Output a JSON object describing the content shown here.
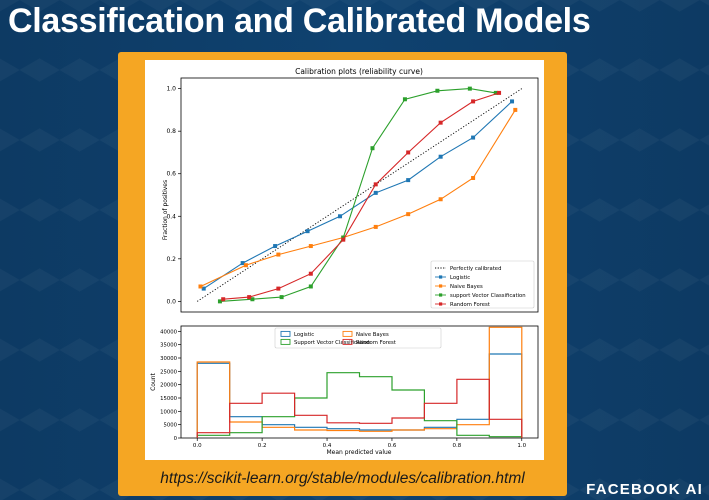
{
  "slide": {
    "title": "Classification and Calibrated Models",
    "url": "https://scikit-learn.org/stable/modules/calibration.html",
    "brand": "FACEBOOK AI"
  },
  "colors": {
    "background": "#0d3a63",
    "card": "#f5a623",
    "logistic": "#1f77b4",
    "naive_bayes": "#ff7f0e",
    "svc": "#2ca02c",
    "random_forest": "#d62728"
  },
  "chart_data": [
    {
      "type": "line",
      "title": "Calibration plots  (reliability curve)",
      "xlabel": "",
      "ylabel": "Fraction of positives",
      "xlim": [
        -0.05,
        1.05
      ],
      "ylim": [
        -0.05,
        1.05
      ],
      "yticks": [
        0.0,
        0.2,
        0.4,
        0.6,
        0.8,
        1.0
      ],
      "grid": false,
      "legend": "lower-right",
      "series": [
        {
          "name": "Perfectly calibrated",
          "color": "#000000",
          "style": "dotted",
          "x": [
            0,
            1
          ],
          "y": [
            0,
            1
          ]
        },
        {
          "name": "Logistic",
          "color": "#1f77b4",
          "style": "solid",
          "x": [
            0.02,
            0.14,
            0.24,
            0.34,
            0.44,
            0.55,
            0.65,
            0.75,
            0.85,
            0.97
          ],
          "y": [
            0.06,
            0.18,
            0.26,
            0.33,
            0.4,
            0.51,
            0.57,
            0.68,
            0.77,
            0.94
          ]
        },
        {
          "name": "Naive Bayes",
          "color": "#ff7f0e",
          "style": "solid",
          "x": [
            0.01,
            0.15,
            0.25,
            0.35,
            0.45,
            0.55,
            0.65,
            0.75,
            0.85,
            0.98
          ],
          "y": [
            0.07,
            0.17,
            0.22,
            0.26,
            0.3,
            0.35,
            0.41,
            0.48,
            0.58,
            0.9
          ]
        },
        {
          "name": "support Vector Classification",
          "color": "#2ca02c",
          "style": "solid",
          "x": [
            0.07,
            0.17,
            0.26,
            0.35,
            0.45,
            0.54,
            0.64,
            0.74,
            0.84,
            0.92
          ],
          "y": [
            0.0,
            0.01,
            0.02,
            0.07,
            0.3,
            0.72,
            0.95,
            0.99,
            1.0,
            0.98
          ]
        },
        {
          "name": "Random Forest",
          "color": "#d62728",
          "style": "solid",
          "x": [
            0.08,
            0.16,
            0.25,
            0.35,
            0.45,
            0.55,
            0.65,
            0.75,
            0.85,
            0.93
          ],
          "y": [
            0.01,
            0.02,
            0.06,
            0.13,
            0.29,
            0.55,
            0.7,
            0.84,
            0.94,
            0.98
          ]
        }
      ]
    },
    {
      "type": "histogram",
      "title": "",
      "xlabel": "Mean predicted value",
      "ylabel": "Count",
      "xlim": [
        -0.05,
        1.05
      ],
      "ylim": [
        0,
        42000
      ],
      "xticks": [
        0.0,
        0.2,
        0.4,
        0.6,
        0.8,
        1.0
      ],
      "yticks": [
        0,
        5000,
        10000,
        15000,
        20000,
        25000,
        30000,
        35000,
        40000
      ],
      "bin_edges": [
        0.0,
        0.1,
        0.2,
        0.3,
        0.4,
        0.5,
        0.6,
        0.7,
        0.8,
        0.9,
        1.0
      ],
      "grid": false,
      "legend": "top-center",
      "series": [
        {
          "name": "Logistic",
          "color": "#1f77b4",
          "values": [
            28000,
            8000,
            5000,
            4000,
            3500,
            3000,
            3000,
            4000,
            7000,
            31500
          ]
        },
        {
          "name": "Naive Bayes",
          "color": "#ff7f0e",
          "values": [
            28500,
            6000,
            4000,
            3000,
            2800,
            2500,
            3000,
            3500,
            5000,
            41500
          ]
        },
        {
          "name": "Support Vector Classification",
          "color": "#2ca02c",
          "values": [
            1000,
            2000,
            8000,
            15000,
            24500,
            23000,
            18000,
            6500,
            1000,
            500
          ]
        },
        {
          "name": "Random Forest",
          "color": "#d62728",
          "values": [
            2000,
            13000,
            16800,
            8500,
            5700,
            5500,
            7500,
            13000,
            22000,
            7000
          ]
        }
      ]
    }
  ]
}
